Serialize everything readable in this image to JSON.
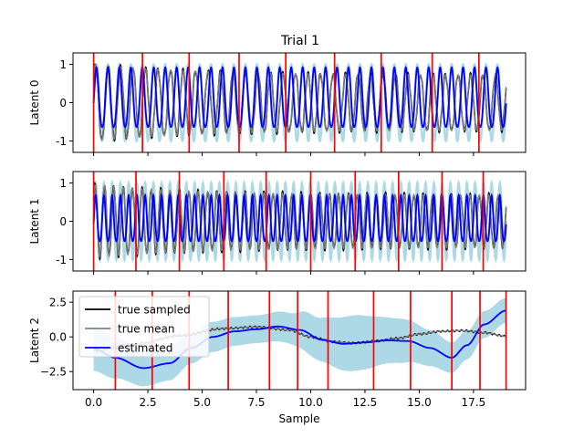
{
  "figure": {
    "title": "Trial 1"
  },
  "chart_data": [
    {
      "type": "line",
      "id": "latent0",
      "ylabel": "Latent 0",
      "xlim": [
        -0.95,
        19.9
      ],
      "ylim": [
        -1.3,
        1.3
      ],
      "yticks": [
        -1,
        0,
        1
      ],
      "xticks": [
        0.0,
        2.5,
        5.0,
        7.5,
        10.0,
        12.5,
        15.0,
        17.5
      ],
      "show_xtick_labels": false,
      "events": [
        0.0,
        2.25,
        4.4,
        6.7,
        8.85,
        11.1,
        13.25,
        15.6,
        17.75
      ],
      "signal": {
        "kind": "osc",
        "cycles_true": 33,
        "cycles_est": 36,
        "amp_true": 1.0,
        "amp_est": 0.78,
        "amp_band": 1.0,
        "offset_est": 0.06
      },
      "series": [
        {
          "name": "true sampled",
          "color": "#000000"
        },
        {
          "name": "true mean",
          "color": "#808080"
        },
        {
          "name": "estimated",
          "color": "#0000ff"
        }
      ],
      "band_color": "#add8e6",
      "event_color": "#ff0000"
    },
    {
      "type": "line",
      "id": "latent1",
      "ylabel": "Latent 1",
      "xlim": [
        -0.95,
        19.9
      ],
      "ylim": [
        -1.3,
        1.3
      ],
      "yticks": [
        -1,
        0,
        1
      ],
      "xticks": [
        0.0,
        2.5,
        5.0,
        7.5,
        10.0,
        12.5,
        15.0,
        17.5
      ],
      "show_xtick_labels": false,
      "events": [
        0.0,
        1.95,
        3.95,
        6.0,
        7.95,
        10.0,
        12.05,
        14.05,
        16.05,
        17.95
      ],
      "signal": {
        "kind": "osc",
        "cycles_true": 44,
        "cycles_est": 50,
        "amp_true": 0.95,
        "amp_est": 0.6,
        "amp_band": 1.0,
        "offset_est": 0.0
      },
      "series": [
        {
          "name": "true sampled",
          "color": "#000000"
        },
        {
          "name": "true mean",
          "color": "#808080"
        },
        {
          "name": "estimated",
          "color": "#0000ff"
        }
      ],
      "band_color": "#add8e6",
      "event_color": "#ff0000"
    },
    {
      "type": "line",
      "id": "latent2",
      "ylabel": "Latent 2",
      "xlabel": "Sample",
      "xlim": [
        -0.95,
        19.9
      ],
      "ylim": [
        -3.8,
        3.3
      ],
      "yticks": [
        -2.5,
        0.0,
        2.5
      ],
      "ytick_labels": [
        "−2.5",
        "0.0",
        "2.5"
      ],
      "xticks": [
        0.0,
        2.5,
        5.0,
        7.5,
        10.0,
        12.5,
        15.0,
        17.5
      ],
      "xtick_labels": [
        "0.0",
        "2.5",
        "5.0",
        "7.5",
        "10.0",
        "12.5",
        "15.0",
        "17.5"
      ],
      "show_xtick_labels": true,
      "events": [
        1.0,
        2.7,
        4.4,
        6.2,
        8.1,
        9.4,
        10.8,
        12.9,
        14.6,
        16.5,
        17.8,
        19.0
      ],
      "signal": {
        "kind": "smooth",
        "true_x": [
          0.0,
          2.0,
          4.0,
          6.0,
          7.5,
          9.0,
          10.0,
          11.0,
          12.0,
          13.0,
          14.0,
          15.0,
          16.0,
          17.0,
          18.0,
          19.0
        ],
        "true_y": [
          -1.0,
          -0.5,
          0.1,
          0.6,
          0.72,
          0.5,
          0.0,
          -0.35,
          -0.45,
          -0.3,
          -0.1,
          0.2,
          0.4,
          0.45,
          0.3,
          0.05
        ],
        "est_x": [
          0.0,
          1.0,
          2.3,
          3.5,
          4.5,
          5.5,
          6.5,
          7.5,
          8.5,
          9.5,
          10.5,
          11.5,
          12.5,
          13.5,
          14.5,
          15.5,
          16.5,
          17.2,
          18.0,
          19.0
        ],
        "est_y": [
          -0.85,
          -1.5,
          -2.25,
          -1.9,
          -0.8,
          0.0,
          0.4,
          0.55,
          0.75,
          0.5,
          -0.2,
          -0.5,
          -0.4,
          -0.25,
          -0.3,
          -0.8,
          -1.5,
          -0.6,
          0.9,
          1.9
        ],
        "band_x": [
          0.0,
          2.5,
          5.0,
          7.5,
          9.0,
          10.0,
          12.0,
          14.0,
          15.5,
          16.5,
          17.5,
          19.0
        ],
        "band_half": [
          1.6,
          1.3,
          1.1,
          1.0,
          1.1,
          1.5,
          2.0,
          1.6,
          1.3,
          1.1,
          1.0,
          0.9
        ]
      },
      "series": [
        {
          "name": "true sampled",
          "color": "#000000"
        },
        {
          "name": "true mean",
          "color": "#808080"
        },
        {
          "name": "estimated",
          "color": "#0000ff"
        }
      ],
      "band_color": "#add8e6",
      "event_color": "#ff0000",
      "legend": "upper-left"
    }
  ]
}
